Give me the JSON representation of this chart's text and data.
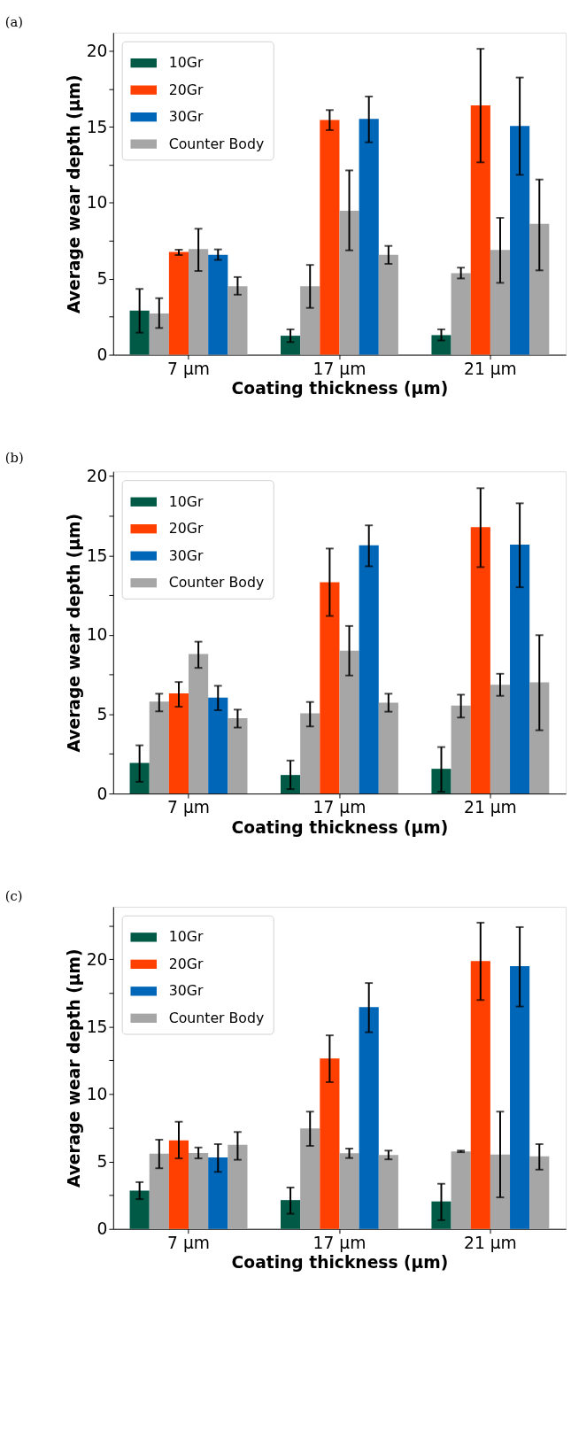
{
  "chart_data": [
    {
      "type": "bar",
      "title": "(a)",
      "xlabel": "Coating thickness (µm)",
      "ylabel": "Average wear depth (µm)",
      "categories": [
        "7 µm",
        "17 µm",
        "21 µm"
      ],
      "ylim": [
        0,
        21.2
      ],
      "yticks": [
        0,
        {
          "value": 2.5,
          "label": null
        },
        5,
        {
          "value": 7.5,
          "label": null
        },
        10,
        {
          "value": 12.5,
          "label": null
        },
        15,
        {
          "value": 17.5,
          "label": null
        },
        20
      ],
      "grid": false,
      "legend": "top left",
      "series": [
        {
          "name": "10Gr",
          "color": "#005a46",
          "values": [
            2.9,
            1.25,
            1.29
          ],
          "errors": [
            [
              1.45,
              4.33
            ],
            [
              0.83,
              1.67
            ],
            [
              0.94,
              1.67
            ]
          ]
        },
        {
          "color": "#a6a6a6",
          "values": [
            2.72,
            4.5,
            5.37
          ],
          "errors": [
            [
              1.76,
              3.72
            ],
            [
              3.08,
              5.91
            ],
            [
              5.02,
              5.73
            ]
          ]
        },
        {
          "name": "20Gr",
          "color": "#ff4000",
          "values": [
            6.76,
            15.45,
            16.41
          ],
          "errors": [
            [
              6.56,
              6.91
            ],
            [
              14.78,
              16.1
            ],
            [
              12.66,
              20.13
            ]
          ]
        },
        {
          "color": "#a6a6a6",
          "values": [
            6.96,
            9.48,
            6.89
          ],
          "errors": [
            [
              5.51,
              8.29
            ],
            [
              6.87,
              12.13
            ],
            [
              4.73,
              9.01
            ]
          ]
        },
        {
          "name": "30Gr",
          "color": "#0066b8",
          "values": [
            6.58,
            15.52,
            15.05
          ],
          "errors": [
            [
              6.24,
              6.93
            ],
            [
              13.98,
              16.99
            ],
            [
              11.84,
              18.24
            ]
          ]
        },
        {
          "name": "Counter Body",
          "color": "#a6a6a6",
          "values": [
            4.5,
            6.58,
            8.61
          ],
          "errors": [
            [
              3.95,
              5.11
            ],
            [
              5.98,
              7.16
            ],
            [
              5.55,
              11.53
            ]
          ]
        }
      ]
    },
    {
      "type": "bar",
      "title": "(b)",
      "xlabel": "Coating thickness (µm)",
      "ylabel": "Average wear depth (µm)",
      "categories": [
        "7 µm",
        "17 µm",
        "21 µm"
      ],
      "ylim": [
        0,
        20.3
      ],
      "yticks": [
        0,
        {
          "value": 2.5,
          "label": null
        },
        5,
        {
          "value": 7.5,
          "label": null
        },
        10,
        {
          "value": 12.5,
          "label": null
        },
        15,
        {
          "value": 17.5,
          "label": null
        },
        20
      ],
      "grid": false,
      "legend": "top left",
      "series": [
        {
          "name": "10Gr",
          "color": "#005a46",
          "values": [
            1.93,
            1.17,
            1.56
          ],
          "errors": [
            [
              0.74,
              3.04
            ],
            [
              0.28,
              2.08
            ],
            [
              0.11,
              2.93
            ]
          ]
        },
        {
          "color": "#a6a6a6",
          "values": [
            5.79,
            5.05,
            5.55
          ],
          "errors": [
            [
              5.18,
              6.29
            ],
            [
              4.23,
              5.77
            ],
            [
              4.79,
              6.23
            ]
          ]
        },
        {
          "name": "20Gr",
          "color": "#ff4000",
          "values": [
            6.31,
            13.32,
            16.79
          ],
          "errors": [
            [
              5.47,
              7.03
            ],
            [
              11.19,
              15.44
            ],
            [
              14.27,
              19.24
            ]
          ]
        },
        {
          "color": "#a6a6a6",
          "values": [
            8.79,
            9.0,
            6.85
          ],
          "errors": [
            [
              7.92,
              9.57
            ],
            [
              7.44,
              10.56
            ],
            [
              6.16,
              7.55
            ]
          ]
        },
        {
          "name": "30Gr",
          "color": "#0066b8",
          "values": [
            6.05,
            15.64,
            15.68
          ],
          "errors": [
            [
              5.25,
              6.79
            ],
            [
              14.32,
              16.9
            ],
            [
              13.0,
              18.29
            ]
          ]
        },
        {
          "name": "Counter Body",
          "color": "#a6a6a6",
          "values": [
            4.75,
            5.73,
            7.01
          ],
          "errors": [
            [
              4.16,
              5.29
            ],
            [
              5.16,
              6.29
            ],
            [
              3.99,
              9.98
            ]
          ]
        }
      ]
    },
    {
      "type": "bar",
      "title": "(c)",
      "xlabel": "Coating thickness (µm)",
      "ylabel": "Average wear depth (µm)",
      "categories": [
        "7 µm",
        "17 µm",
        "21 µm"
      ],
      "ylim": [
        0,
        23.9
      ],
      "yticks": [
        0,
        {
          "value": 2.5,
          "label": null
        },
        5,
        {
          "value": 7.5,
          "label": null
        },
        10,
        {
          "value": 12.5,
          "label": null
        },
        15,
        {
          "value": 17.5,
          "label": null
        },
        20,
        {
          "value": 22.5,
          "label": null
        }
      ],
      "grid": false,
      "legend": "top left",
      "series": [
        {
          "name": "10Gr",
          "color": "#005a46",
          "values": [
            2.84,
            2.14,
            2.04
          ],
          "errors": [
            [
              2.21,
              3.47
            ],
            [
              1.13,
              3.07
            ],
            [
              0.65,
              3.35
            ]
          ]
        },
        {
          "color": "#a6a6a6",
          "values": [
            5.58,
            7.45,
            5.74
          ],
          "errors": [
            [
              4.5,
              6.62
            ],
            [
              6.16,
              8.7
            ],
            [
              5.69,
              5.81
            ]
          ]
        },
        {
          "name": "20Gr",
          "color": "#ff4000",
          "values": [
            6.57,
            12.65,
            19.87
          ],
          "errors": [
            [
              5.23,
              7.95
            ],
            [
              10.89,
              14.36
            ],
            [
              16.98,
              22.72
            ]
          ]
        },
        {
          "color": "#a6a6a6",
          "values": [
            5.64,
            5.61,
            5.51
          ],
          "errors": [
            [
              5.23,
              6.04
            ],
            [
              5.26,
              5.96
            ],
            [
              2.34,
              8.7
            ]
          ]
        },
        {
          "name": "30Gr",
          "color": "#0066b8",
          "values": [
            5.31,
            16.45,
            19.5
          ],
          "errors": [
            [
              4.23,
              6.29
            ],
            [
              14.59,
              18.24
            ],
            [
              16.5,
              22.39
            ]
          ]
        },
        {
          "name": "Counter Body",
          "color": "#a6a6a6",
          "values": [
            6.24,
            5.48,
            5.38
          ],
          "errors": [
            [
              5.13,
              7.19
            ],
            [
              5.16,
              5.81
            ],
            [
              4.4,
              6.29
            ]
          ]
        }
      ]
    }
  ]
}
